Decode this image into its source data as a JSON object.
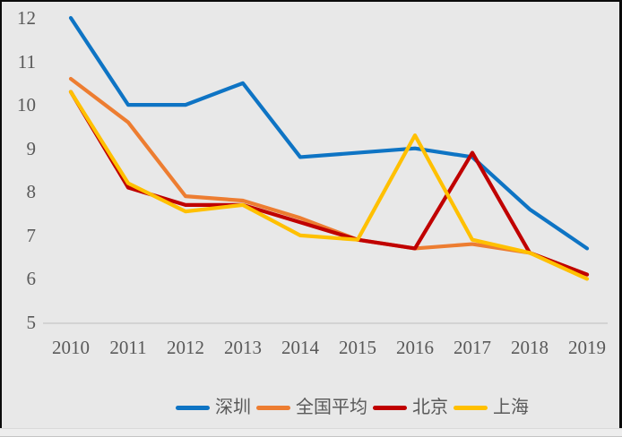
{
  "chart_data": {
    "type": "line",
    "x": [
      2010,
      2011,
      2012,
      2013,
      2014,
      2015,
      2016,
      2017,
      2018,
      2019
    ],
    "series": [
      {
        "name": "深圳",
        "slug": "shenzhen",
        "color": "#0e74c4",
        "values": [
          12.0,
          10.0,
          10.0,
          10.5,
          8.8,
          8.9,
          9.0,
          8.8,
          7.6,
          6.7
        ]
      },
      {
        "name": "全国平均",
        "slug": "national-average",
        "color": "#ed7d31",
        "values": [
          10.6,
          9.6,
          7.9,
          7.8,
          7.4,
          6.9,
          6.7,
          6.8,
          6.6,
          6.1
        ]
      },
      {
        "name": "北京",
        "slug": "beijing",
        "color": "#c00000",
        "values": [
          10.3,
          8.1,
          7.7,
          7.7,
          7.3,
          6.9,
          6.7,
          8.9,
          6.6,
          6.1
        ]
      },
      {
        "name": "上海",
        "slug": "shanghai",
        "color": "#ffc000",
        "values": [
          10.3,
          8.2,
          7.55,
          7.7,
          7.0,
          6.9,
          9.3,
          6.9,
          6.6,
          6.0
        ]
      }
    ],
    "title": "",
    "xlabel": "",
    "ylabel": "",
    "ylim": [
      5,
      12
    ],
    "y_ticks": [
      5,
      6,
      7,
      8,
      9,
      10,
      11,
      12
    ],
    "grid": false,
    "legend_position": "bottom",
    "axis_line_color": "#c6c6c6",
    "tick_label_color": "#595959",
    "background_color": "#e8e8e8"
  }
}
